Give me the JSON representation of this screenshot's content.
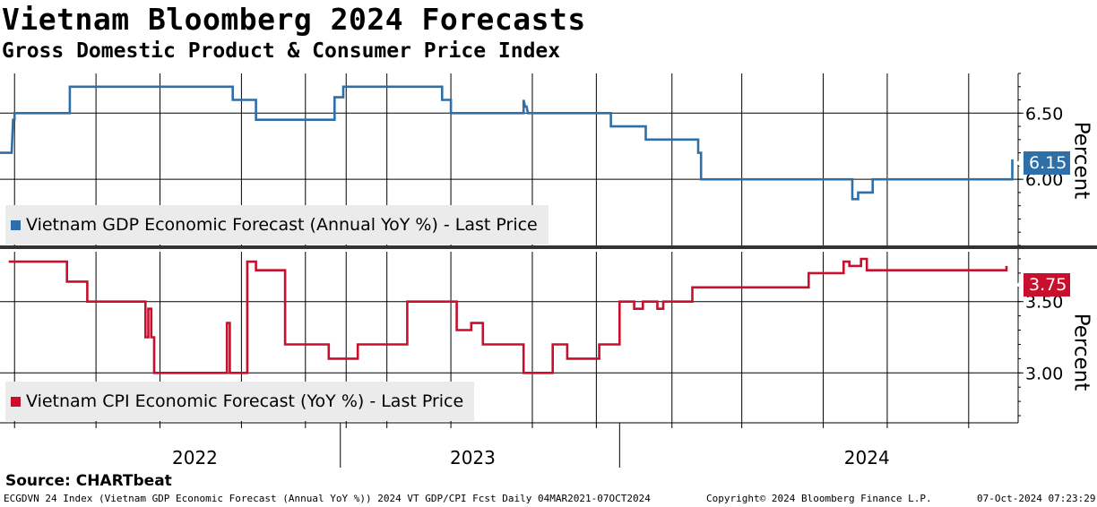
{
  "title": "Vietnam Bloomberg 2024 Forecasts",
  "subtitle": "Gross Domestic Product & Consumer Price Index",
  "source": "Source: CHARTbeat",
  "footer": {
    "left": "ECGDVN 24 Index (Vietnam GDP Economic Forecast (Annual YoY %)) 2024 VT GDP/CPI Fcst  Daily 04MAR2021-07OCT2024",
    "center": "Copyright© 2024 Bloomberg Finance L.P.",
    "right": "07-Oct-2024 07:23:29"
  },
  "chart_data": [
    {
      "type": "line",
      "panel": "top",
      "series_name": "Vietnam GDP Economic Forecast (Annual YoY %) - Last Price",
      "ylabel": "Percent",
      "yticks": [
        "6.50",
        "6.00"
      ],
      "ytick_values": [
        6.5,
        6.0
      ],
      "ylim": [
        5.5,
        6.8
      ],
      "last_value": "6.15",
      "color": "#2e6fa7",
      "x": [
        2021.5,
        2021.54,
        2021.545,
        2021.55,
        2021.55,
        2021.74,
        2021.74,
        2022.3,
        2022.3,
        2022.38,
        2022.38,
        2022.65,
        2022.65,
        2022.68,
        2022.68,
        2023.02,
        2023.02,
        2023.05,
        2023.05,
        2023.3,
        2023.3,
        2023.305,
        2023.31,
        2023.315,
        2023.32,
        2023.6,
        2023.6,
        2023.72,
        2023.72,
        2023.9,
        2023.9,
        2023.91,
        2023.91,
        2024.43,
        2024.43,
        2024.45,
        2024.45,
        2024.5,
        2024.5,
        2024.52,
        2024.52,
        2024.98,
        2024.98
      ],
      "y": [
        6.2,
        6.2,
        6.45,
        6.45,
        6.5,
        6.5,
        6.7,
        6.7,
        6.6,
        6.6,
        6.45,
        6.45,
        6.62,
        6.62,
        6.7,
        6.7,
        6.6,
        6.6,
        6.5,
        6.5,
        6.6,
        6.55,
        6.55,
        6.5,
        6.5,
        6.5,
        6.4,
        6.4,
        6.3,
        6.3,
        6.2,
        6.2,
        6.0,
        6.0,
        5.85,
        5.85,
        5.9,
        5.9,
        6.0,
        6.0,
        6.0,
        6.0,
        6.15
      ]
    },
    {
      "type": "line",
      "panel": "bottom",
      "series_name": "Vietnam CPI Economic Forecast (YoY %) - Last Price",
      "ylabel": "Percent",
      "yticks": [
        "3.50",
        "3.00"
      ],
      "ytick_values": [
        3.5,
        3.0
      ],
      "ylim": [
        2.65,
        3.85
      ],
      "last_value": "3.75",
      "color": "#c8102e",
      "x": [
        2021.53,
        2021.73,
        2021.73,
        2021.8,
        2021.8,
        2022.0,
        2022.0,
        2022.01,
        2022.01,
        2022.02,
        2022.02,
        2022.03,
        2022.03,
        2022.23,
        2022.23,
        2022.25,
        2022.25,
        2022.26,
        2022.26,
        2022.28,
        2022.28,
        2022.29,
        2022.29,
        2022.35,
        2022.35,
        2022.38,
        2022.38,
        2022.48,
        2022.48,
        2022.63,
        2022.63,
        2022.73,
        2022.73,
        2022.9,
        2022.9,
        2023.03,
        2023.03,
        2023.05,
        2023.05,
        2023.07,
        2023.07,
        2023.12,
        2023.12,
        2023.16,
        2023.16,
        2023.3,
        2023.3,
        2023.4,
        2023.4,
        2023.45,
        2023.45,
        2023.47,
        2023.47,
        2023.56,
        2023.56,
        2023.63,
        2023.63,
        2023.68,
        2023.68,
        2023.71,
        2023.71,
        2023.73,
        2023.73,
        2023.76,
        2023.76,
        2023.78,
        2023.78,
        2023.8,
        2023.8,
        2023.82,
        2023.82,
        2023.85,
        2023.85,
        2023.87,
        2023.87,
        2023.88,
        2023.88,
        2024.28,
        2024.28,
        2024.4,
        2024.4,
        2024.42,
        2024.42,
        2024.46,
        2024.46,
        2024.48,
        2024.48,
        2024.5,
        2024.5,
        2024.54,
        2024.54,
        2024.96,
        2024.96
      ],
      "y": [
        3.78,
        3.78,
        3.64,
        3.64,
        3.5,
        3.5,
        3.25,
        3.25,
        3.45,
        3.45,
        3.25,
        3.25,
        3.0,
        3.0,
        3.0,
        3.0,
        3.0,
        3.0,
        3.0,
        3.0,
        3.35,
        3.35,
        3.0,
        3.0,
        3.78,
        3.78,
        3.72,
        3.72,
        3.2,
        3.2,
        3.1,
        3.1,
        3.2,
        3.2,
        3.5,
        3.5,
        3.5,
        3.5,
        3.5,
        3.5,
        3.3,
        3.3,
        3.35,
        3.35,
        3.2,
        3.2,
        3.0,
        3.0,
        3.2,
        3.2,
        3.1,
        3.1,
        3.1,
        3.1,
        3.2,
        3.2,
        3.5,
        3.5,
        3.45,
        3.45,
        3.5,
        3.5,
        3.5,
        3.5,
        3.45,
        3.45,
        3.5,
        3.5,
        3.5,
        3.5,
        3.5,
        3.5,
        3.5,
        3.5,
        3.5,
        3.5,
        3.6,
        3.6,
        3.7,
        3.7,
        3.78,
        3.78,
        3.75,
        3.75,
        3.8,
        3.8,
        3.72,
        3.72,
        3.72,
        3.72,
        3.72,
        3.72,
        3.75
      ]
    }
  ],
  "x_axis": {
    "xlim": [
      2021.5,
      2025.0
    ],
    "year_labels": [
      {
        "label": "2022",
        "center": 2022.17
      },
      {
        "label": "2023",
        "center": 2023.125
      },
      {
        "label": "2024",
        "center": 2024.48
      }
    ],
    "year_separators": [
      2022.67,
      2023.63
    ],
    "month_grid": [
      2021.55,
      2021.83,
      2022.05,
      2022.33,
      2022.55,
      2022.69,
      2022.83,
      2023.05,
      2023.33,
      2023.55,
      2023.81,
      2024.05,
      2024.33,
      2024.55,
      2024.83
    ]
  }
}
